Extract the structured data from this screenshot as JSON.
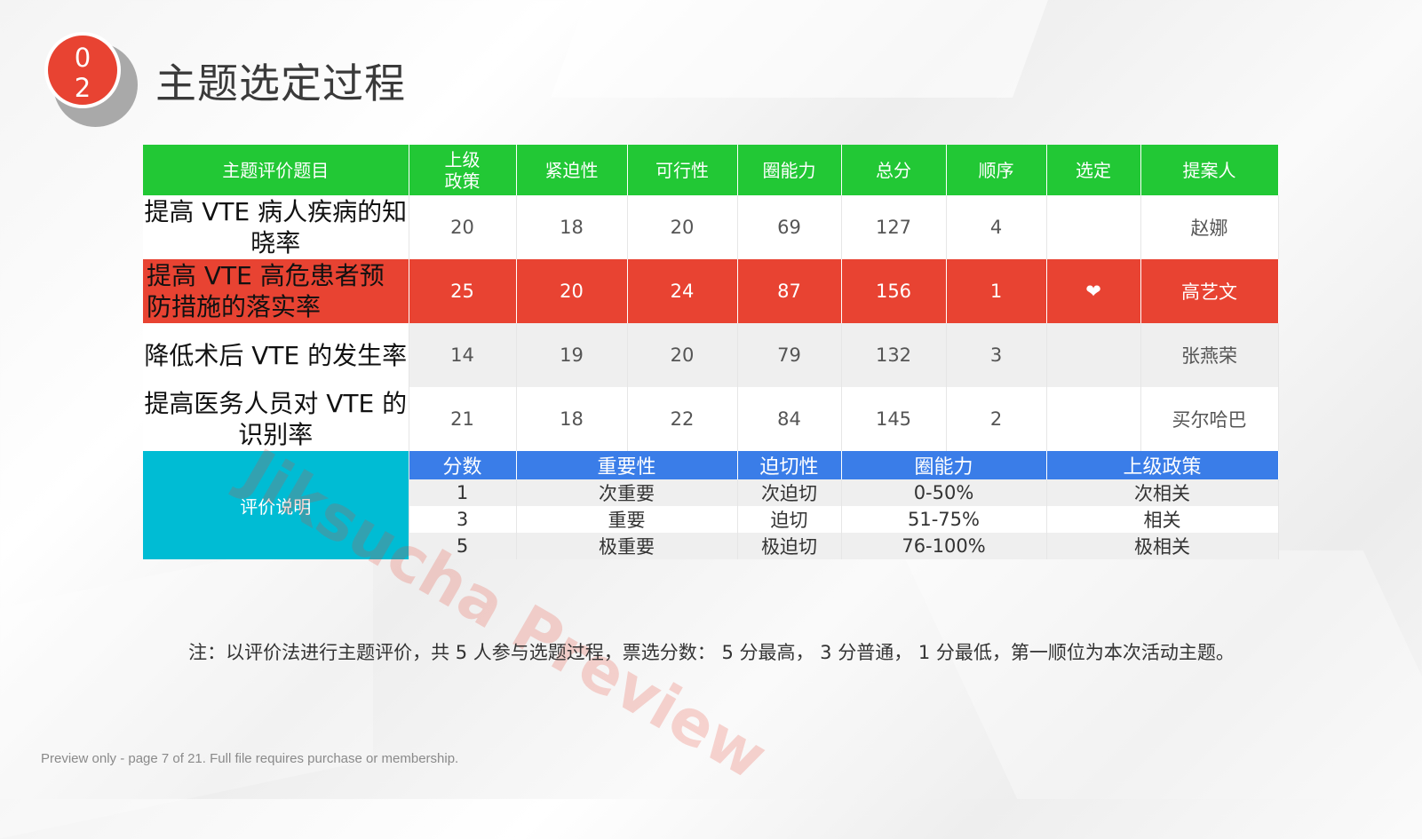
{
  "badge": {
    "digits": [
      "0",
      "2"
    ],
    "color": "#e84332"
  },
  "page_title": "主题选定过程",
  "table": {
    "headers": [
      "主题评价题目",
      "上级\n政策",
      "紧迫性",
      "可行性",
      "圈能力",
      "总分",
      "顺序",
      "选定",
      "提案人"
    ],
    "header_color": "#22c835",
    "rows": [
      {
        "topic": "提高 VTE 病人疾病的知晓率",
        "values": [
          "20",
          "18",
          "20",
          "69",
          "127",
          "4",
          "",
          "赵娜"
        ]
      },
      {
        "topic": "提高 VTE 高危患者预防措施的落实率",
        "values": [
          "25",
          "20",
          "24",
          "87",
          "156",
          "1",
          "❤",
          "高艺文"
        ],
        "highlight": "#e84332"
      },
      {
        "topic": "降低术后 VTE 的发生率",
        "values": [
          "14",
          "19",
          "20",
          "79",
          "132",
          "3",
          "",
          "张燕荣"
        ]
      },
      {
        "topic": "提高医务人员对 VTE 的识别率",
        "values": [
          "21",
          "18",
          "22",
          "84",
          "145",
          "2",
          "",
          "买尔哈巴"
        ]
      }
    ],
    "evaluation": {
      "label": "评价说明",
      "label_color": "#00bcd4",
      "headers": [
        "分数",
        "重要性",
        "迫切性",
        "圈能力",
        "上级政策"
      ],
      "header_color": "#3a7de8",
      "rows": [
        [
          "1",
          "次重要",
          "次迫切",
          "0-50%",
          "次相关"
        ],
        [
          "3",
          "重要",
          "迫切",
          "51-75%",
          "相关"
        ],
        [
          "5",
          "极重要",
          "极迫切",
          "76-100%",
          "极相关"
        ]
      ]
    }
  },
  "note": "注：以评价法进行主题评价，共 5 人参与选题过程，票选分数： 5 分最高， 3 分普通， 1 分最低，第一顺位为本次活动主题。",
  "watermark": "Jiksucha Preview",
  "preview_footer": "Preview only - page 7 of 21. Full file requires purchase or membership."
}
